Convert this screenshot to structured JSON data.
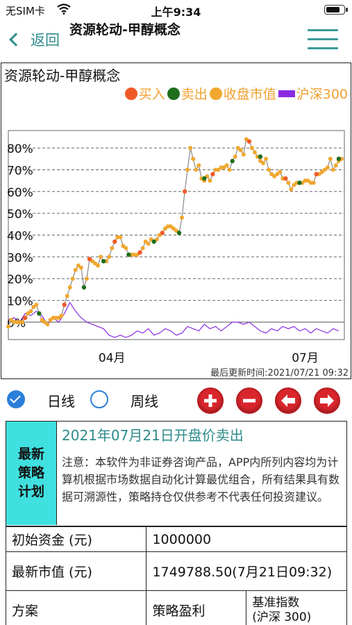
{
  "status_bar": {
    "carrier": "无SIM卡",
    "time": "上午9:34",
    "battery_level": 0.85
  },
  "nav": {
    "back_label": "返回",
    "title": "资源轮动-甲醇概念"
  },
  "chart_title": "资源轮动-甲醇概念",
  "legend": [
    {
      "label": "买入",
      "color": "#f05a28",
      "shape": "dot"
    },
    {
      "label": "卖出",
      "color": "#1e6e1e",
      "shape": "dot"
    },
    {
      "label": "收盘市值",
      "color": "#f0a830",
      "shape": "dot"
    },
    {
      "label": "沪深300",
      "color": "#8a2be2",
      "shape": "bar"
    }
  ],
  "chart_data": {
    "type": "line",
    "title": "资源轮动-甲醇概念",
    "y_tick_labels": [
      "0%",
      "10%",
      "20%",
      "30%",
      "40%",
      "50%",
      "60%",
      "70%",
      "80%"
    ],
    "y_ticks": [
      0,
      10,
      20,
      30,
      40,
      50,
      60,
      70,
      80
    ],
    "ylim": [
      -8,
      88
    ],
    "x_tick_labels": [
      "04月",
      "07月"
    ],
    "x_ticks": [
      37,
      106
    ],
    "xlim": [
      0,
      120
    ],
    "grid": true,
    "series": [
      {
        "name": "收盘市值",
        "color": "#f0a830",
        "x": [
          0,
          1,
          2,
          3,
          4,
          5,
          6,
          7,
          8,
          9,
          10,
          11,
          12,
          13,
          14,
          15,
          16,
          17,
          18,
          19,
          20,
          21,
          22,
          23,
          24,
          25,
          26,
          27,
          28,
          29,
          30,
          31,
          32,
          33,
          34,
          35,
          36,
          37,
          38,
          39,
          40,
          41,
          42,
          43,
          44,
          45,
          46,
          47,
          48,
          49,
          50,
          51,
          52,
          53,
          54,
          55,
          56,
          57,
          58,
          59,
          60,
          61,
          62,
          63,
          64,
          65,
          66,
          67,
          68,
          69,
          70,
          71,
          72,
          73,
          74,
          75,
          76,
          77,
          78,
          79,
          80,
          81,
          82,
          83,
          84,
          85,
          86,
          87,
          88,
          89,
          90,
          91,
          92,
          93,
          94,
          95,
          96,
          97,
          98,
          99,
          100,
          101,
          102,
          103,
          104,
          105,
          106,
          107,
          108,
          109,
          110,
          111,
          112,
          113,
          114,
          115,
          116,
          117,
          118,
          119
        ],
        "values": [
          -2,
          1,
          0,
          0,
          0,
          0,
          2,
          4,
          5,
          7,
          8,
          4,
          1,
          0,
          -1,
          1,
          2,
          2,
          2,
          3,
          8,
          12,
          16,
          20,
          24,
          26,
          25,
          16,
          20,
          29,
          28,
          27,
          26,
          30,
          28,
          28,
          30,
          34,
          37,
          39,
          39,
          35,
          34,
          31,
          31,
          31,
          31,
          32,
          34,
          37,
          36,
          38,
          37,
          38,
          40,
          41,
          43,
          44,
          44,
          43,
          42,
          41,
          48,
          60,
          70,
          80,
          75,
          70,
          72,
          66,
          65,
          67,
          65,
          68,
          70,
          70,
          71,
          71,
          72,
          70,
          74,
          76,
          80,
          79,
          77,
          84,
          83,
          80,
          78,
          76,
          74,
          73,
          75,
          70,
          68,
          67,
          68,
          69,
          66,
          66,
          64,
          61,
          63,
          64,
          64,
          64,
          65,
          65,
          64,
          64,
          68,
          68,
          69,
          70,
          71,
          75,
          70,
          72,
          74,
          75
        ]
      },
      {
        "name": "沪深300",
        "color": "#8a2be2",
        "x": [
          0,
          2,
          4,
          6,
          8,
          10,
          12,
          14,
          16,
          18,
          20,
          22,
          24,
          26,
          28,
          30,
          32,
          34,
          36,
          38,
          40,
          42,
          44,
          46,
          48,
          50,
          52,
          54,
          56,
          58,
          60,
          62,
          64,
          66,
          68,
          70,
          72,
          74,
          76,
          78,
          80,
          82,
          84,
          86,
          88,
          90,
          92,
          94,
          96,
          98,
          100,
          102,
          104,
          106,
          108,
          110,
          112,
          114,
          116,
          118
        ],
        "values": [
          1,
          2,
          0,
          4,
          3,
          5,
          3,
          -1,
          2,
          0,
          4,
          9,
          5,
          2,
          0,
          -1,
          -2,
          -3,
          -6,
          -7,
          -6,
          -7,
          -6,
          -4,
          -5,
          -3,
          -6,
          -5,
          -3,
          -4,
          -6,
          -5,
          -2,
          -3,
          -4,
          -1,
          -3,
          -2,
          -4,
          -2,
          0,
          0,
          -1,
          0,
          -2,
          -4,
          -5,
          -3,
          -4,
          -2,
          -3,
          -2,
          -4,
          -3,
          -5,
          -3,
          -4,
          -5,
          -3,
          -4
        ]
      }
    ],
    "buy_points": [
      [
        6,
        2
      ],
      [
        20,
        8
      ],
      [
        29,
        29
      ],
      [
        38,
        37
      ],
      [
        47,
        32
      ],
      [
        55,
        41
      ],
      [
        63,
        60
      ],
      [
        73,
        68
      ],
      [
        86,
        83
      ],
      [
        99,
        66
      ],
      [
        110,
        68
      ]
    ],
    "sell_points": [
      [
        11,
        4
      ],
      [
        27,
        16
      ],
      [
        34,
        28
      ],
      [
        43,
        31
      ],
      [
        52,
        37
      ],
      [
        61,
        41
      ],
      [
        70,
        66
      ],
      [
        80,
        74
      ],
      [
        90,
        76
      ],
      [
        104,
        64
      ],
      [
        118,
        75
      ]
    ]
  },
  "chart_updated": "最后更新时间:2021/07/21 09:32",
  "controls": {
    "daily_label": "日线",
    "weekly_label": "周线",
    "daily_selected": true
  },
  "plan": {
    "label": "最新策略计划",
    "label_lines": [
      "最新",
      "策略",
      "计划"
    ],
    "headline": "2021年07月21日开盘价卖出",
    "note": "注意：本软件为非证券咨询产品，APP内所列内容均为计算机根据市场数据自动化计算最优组合，所有结果具有数据可溯源性，策略持仓仅供参考不代表任何投资建议。"
  },
  "table": {
    "initial_capital_label": "初始资金 (元)",
    "initial_capital_value": "1000000",
    "latest_value_label": "最新市值 (元)",
    "latest_value_value": "1749788.50(7月21日09:32)",
    "col_plan": "方案",
    "col_profit": "策略盈利",
    "col_benchmark_line1": "基准指数",
    "col_benchmark_line2": "(沪深 300)"
  }
}
